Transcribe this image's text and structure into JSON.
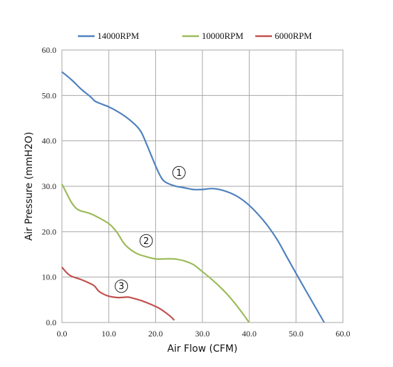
{
  "chart_data": {
    "type": "line",
    "xlabel": "Air Flow (CFM)",
    "ylabel": "Air Pressure (mmH2O)",
    "xlim": [
      0,
      60
    ],
    "ylim": [
      0,
      60
    ],
    "x_ticks": [
      "0.0",
      "10.0",
      "20.0",
      "30.0",
      "40.0",
      "50.0",
      "60.0"
    ],
    "y_ticks": [
      "0.0",
      "10.0",
      "20.0",
      "30.0",
      "40.0",
      "50.0",
      "60.0"
    ],
    "grid": true,
    "legend_position": "top",
    "series": [
      {
        "name": "14000RPM",
        "color": "#4f81bd",
        "points": [
          [
            0,
            55.2
          ],
          [
            2,
            53.5
          ],
          [
            4,
            51.5
          ],
          [
            6,
            49.8
          ],
          [
            7,
            48.8
          ],
          [
            8,
            48.3
          ],
          [
            10,
            47.5
          ],
          [
            12,
            46.4
          ],
          [
            14,
            45.0
          ],
          [
            16,
            43.2
          ],
          [
            17,
            41.8
          ],
          [
            18,
            39.5
          ],
          [
            19,
            37.0
          ],
          [
            20,
            34.5
          ],
          [
            21,
            32.3
          ],
          [
            22,
            31.0
          ],
          [
            24,
            30.1
          ],
          [
            26,
            29.7
          ],
          [
            28,
            29.3
          ],
          [
            30,
            29.3
          ],
          [
            32,
            29.5
          ],
          [
            34,
            29.2
          ],
          [
            36,
            28.5
          ],
          [
            38,
            27.4
          ],
          [
            40,
            25.8
          ],
          [
            42,
            23.7
          ],
          [
            44,
            21.2
          ],
          [
            46,
            18.2
          ],
          [
            48,
            14.5
          ],
          [
            50,
            10.8
          ],
          [
            52,
            7.2
          ],
          [
            54,
            3.6
          ],
          [
            56,
            0
          ]
        ]
      },
      {
        "name": "10000RPM",
        "color": "#9bbb59",
        "points": [
          [
            0,
            30.5
          ],
          [
            1,
            28.5
          ],
          [
            2,
            26.5
          ],
          [
            3,
            25.2
          ],
          [
            4,
            24.6
          ],
          [
            6,
            24.0
          ],
          [
            8,
            23.0
          ],
          [
            10,
            21.8
          ],
          [
            11,
            20.8
          ],
          [
            12,
            19.5
          ],
          [
            13,
            17.8
          ],
          [
            14,
            16.6
          ],
          [
            16,
            15.2
          ],
          [
            18,
            14.5
          ],
          [
            20,
            14.0
          ],
          [
            22,
            14.0
          ],
          [
            24,
            14.0
          ],
          [
            26,
            13.6
          ],
          [
            28,
            12.8
          ],
          [
            30,
            11.2
          ],
          [
            32,
            9.5
          ],
          [
            34,
            7.6
          ],
          [
            36,
            5.4
          ],
          [
            38,
            2.8
          ],
          [
            40,
            0
          ]
        ]
      },
      {
        "name": "6000RPM",
        "color": "#c0504d",
        "points": [
          [
            0,
            12.2
          ],
          [
            1,
            11.0
          ],
          [
            2,
            10.2
          ],
          [
            4,
            9.5
          ],
          [
            6,
            8.6
          ],
          [
            7,
            8.0
          ],
          [
            8,
            6.8
          ],
          [
            10,
            5.8
          ],
          [
            12,
            5.5
          ],
          [
            14,
            5.6
          ],
          [
            15,
            5.4
          ],
          [
            17,
            4.8
          ],
          [
            19,
            4.0
          ],
          [
            21,
            3.0
          ],
          [
            23,
            1.5
          ],
          [
            24,
            0.5
          ]
        ]
      }
    ],
    "annotations": [
      {
        "text": "1",
        "x": 25,
        "y": 33
      },
      {
        "text": "2",
        "x": 18,
        "y": 18
      },
      {
        "text": "3",
        "x": 12.7,
        "y": 8
      }
    ]
  }
}
